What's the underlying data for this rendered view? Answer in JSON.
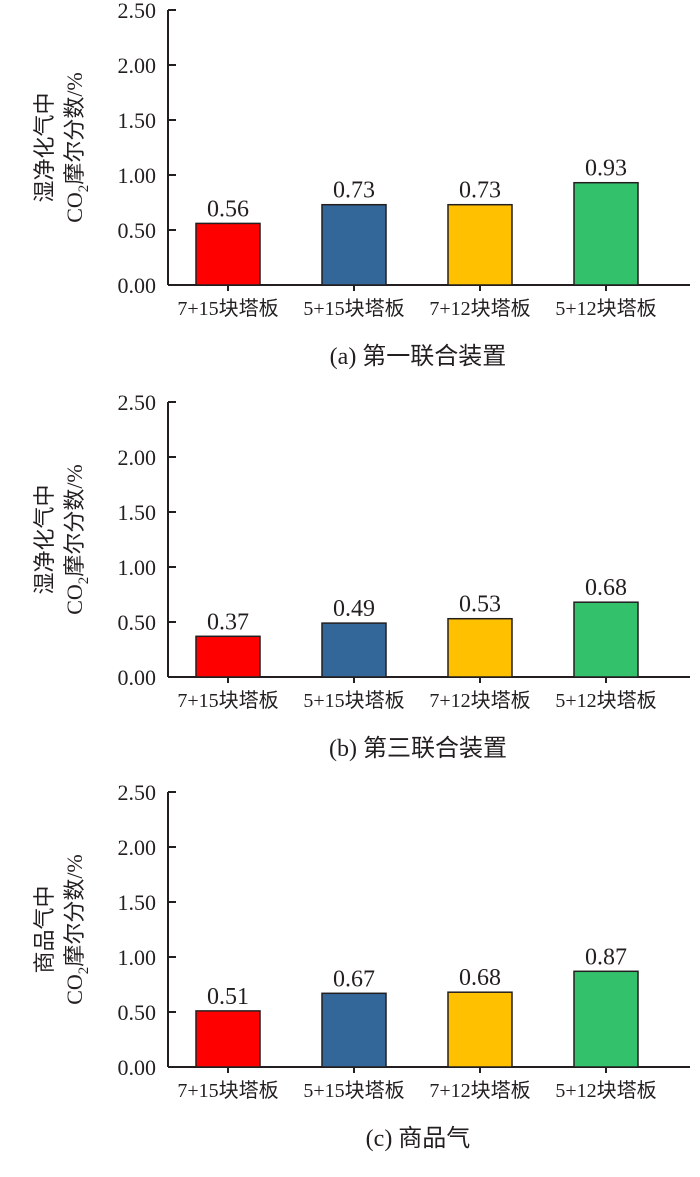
{
  "chart_data": [
    {
      "type": "bar",
      "caption": "(a) 第一联合装置",
      "ylabel_line1": "湿净化气中",
      "ylabel_line2_pre": "CO",
      "ylabel_line2_sub": "2",
      "ylabel_line2_post": "摩尔分数/%",
      "categories": [
        "7+15块塔板",
        "5+15块塔板",
        "7+12块塔板",
        "5+12块塔板"
      ],
      "values": [
        0.56,
        0.73,
        0.73,
        0.93
      ],
      "value_labels": [
        "0.56",
        "0.73",
        "0.73",
        "0.93"
      ],
      "colors": [
        "#ff0000",
        "#336699",
        "#ffc000",
        "#33c16b"
      ],
      "ylim": [
        0,
        2.5
      ],
      "yticks": [
        "0.00",
        "0.50",
        "1.00",
        "1.50",
        "2.00",
        "2.50"
      ],
      "grid": false
    },
    {
      "type": "bar",
      "caption": "(b) 第三联合装置",
      "ylabel_line1": "湿净化气中",
      "ylabel_line2_pre": "CO",
      "ylabel_line2_sub": "2",
      "ylabel_line2_post": "摩尔分数/%",
      "categories": [
        "7+15块塔板",
        "5+15块塔板",
        "7+12块塔板",
        "5+12块塔板"
      ],
      "values": [
        0.37,
        0.49,
        0.53,
        0.68
      ],
      "value_labels": [
        "0.37",
        "0.49",
        "0.53",
        "0.68"
      ],
      "colors": [
        "#ff0000",
        "#336699",
        "#ffc000",
        "#33c16b"
      ],
      "ylim": [
        0,
        2.5
      ],
      "yticks": [
        "0.00",
        "0.50",
        "1.00",
        "1.50",
        "2.00",
        "2.50"
      ],
      "grid": false
    },
    {
      "type": "bar",
      "caption": "(c) 商品气",
      "ylabel_line1": "商品气中",
      "ylabel_line2_pre": "CO",
      "ylabel_line2_sub": "2",
      "ylabel_line2_post": "摩尔分数/%",
      "categories": [
        "7+15块塔板",
        "5+15块塔板",
        "7+12块塔板",
        "5+12块塔板"
      ],
      "values": [
        0.51,
        0.67,
        0.68,
        0.87
      ],
      "value_labels": [
        "0.51",
        "0.67",
        "0.68",
        "0.87"
      ],
      "colors": [
        "#ff0000",
        "#336699",
        "#ffc000",
        "#33c16b"
      ],
      "ylim": [
        0,
        2.5
      ],
      "yticks": [
        "0.00",
        "0.50",
        "1.00",
        "1.50",
        "2.00",
        "2.50"
      ],
      "grid": false
    }
  ]
}
